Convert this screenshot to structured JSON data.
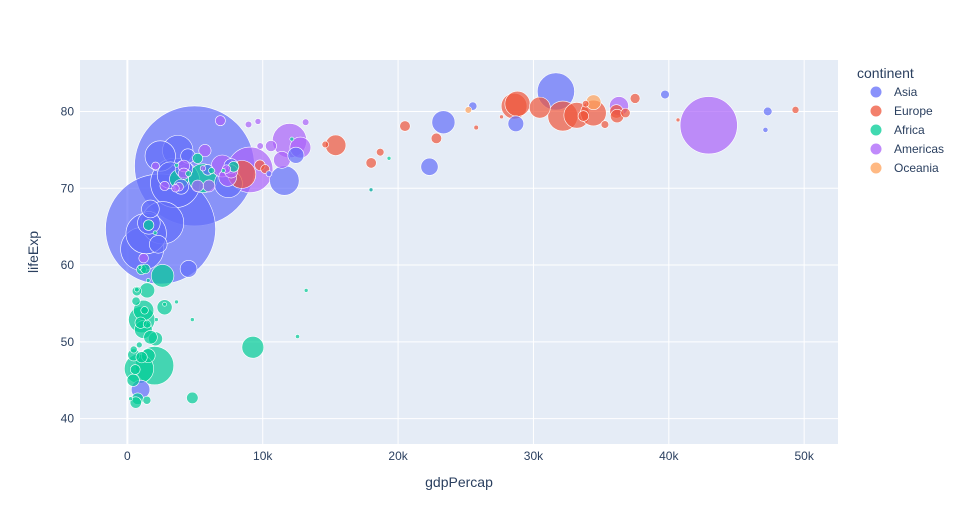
{
  "chart_data": {
    "type": "scatter",
    "xlabel": "gdpPercap",
    "ylabel": "lifeExp",
    "xlim": [
      -3500,
      52500
    ],
    "ylim": [
      36.7,
      86.7
    ],
    "x_ticks": [
      0,
      10000,
      20000,
      30000,
      40000,
      50000
    ],
    "x_tick_labels": [
      "0",
      "10k",
      "20k",
      "30k",
      "40k",
      "50k"
    ],
    "y_ticks": [
      40,
      50,
      60,
      70,
      80
    ],
    "y_tick_labels": [
      "40",
      "50",
      "60",
      "70",
      "80"
    ],
    "grid": true,
    "legend": {
      "title": "continent",
      "position": "top-right"
    },
    "series": [
      {
        "name": "Asia",
        "color": "#636efa",
        "points": [
          [
            4960,
            72.9,
            1319
          ],
          [
            2450,
            64.7,
            1110
          ],
          [
            3540,
            70.7,
            224
          ],
          [
            2600,
            65.5,
            165
          ],
          [
            31660,
            82.6,
            127
          ],
          [
            1390,
            64.1,
            150
          ],
          [
            1090,
            62.1,
            170
          ],
          [
            2430,
            74.2,
            85
          ],
          [
            3190,
            71.7,
            65
          ],
          [
            11600,
            71.0,
            80
          ],
          [
            7460,
            70.6,
            72
          ],
          [
            4470,
            74.2,
            19
          ],
          [
            22320,
            72.8,
            27.6
          ],
          [
            23350,
            78.6,
            49
          ],
          [
            28700,
            78.4,
            23
          ],
          [
            12450,
            74.3,
            24
          ],
          [
            1700,
            67.3,
            28.9
          ],
          [
            1590,
            65.5,
            47
          ],
          [
            4520,
            59.5,
            26
          ],
          [
            975,
            43.8,
            31.9
          ],
          [
            3970,
            70.2,
            20.4
          ],
          [
            2280,
            62.7,
            28.9
          ],
          [
            47310,
            80.0,
            6.9
          ],
          [
            39720,
            82.2,
            6.98
          ],
          [
            47140,
            77.6,
            2.5
          ],
          [
            25520,
            80.7,
            6.4
          ],
          [
            5940,
            72.4,
            10.7
          ],
          [
            10460,
            71.9,
            3.2
          ],
          [
            7670,
            72.9,
            19.3
          ],
          [
            4180,
            72.5,
            28.1
          ],
          [
            3720,
            74.9,
            85.3
          ]
        ]
      },
      {
        "name": "Europe",
        "color": "#ef553b",
        "points": [
          [
            32170,
            79.4,
            82.4
          ],
          [
            28570,
            80.7,
            61.1
          ],
          [
            33200,
            79.5,
            60.8
          ],
          [
            30470,
            80.5,
            40.4
          ],
          [
            28820,
            81.0,
            58.1
          ],
          [
            36800,
            79.8,
            8.2
          ],
          [
            33690,
            79.4,
            10.4
          ],
          [
            35280,
            78.3,
            5.5
          ],
          [
            36130,
            80.0,
            16.6
          ],
          [
            49360,
            80.2,
            4.6
          ],
          [
            37510,
            81.7,
            9.0
          ],
          [
            15390,
            75.6,
            38.5
          ],
          [
            8460,
            71.8,
            71.2
          ],
          [
            9790,
            73.0,
            10.2
          ],
          [
            10180,
            72.5,
            7.3
          ],
          [
            20510,
            78.1,
            10.2
          ],
          [
            22830,
            76.5,
            10.2
          ],
          [
            18010,
            73.3,
            10.0
          ],
          [
            18680,
            74.7,
            5.4
          ],
          [
            14620,
            75.7,
            4.1
          ],
          [
            40680,
            78.9,
            0.3
          ],
          [
            27640,
            79.3,
            0.4
          ],
          [
            33860,
            81.0,
            4.1
          ],
          [
            36180,
            79.4,
            16.5
          ],
          [
            25770,
            77.9,
            2.0
          ],
          [
            34430,
            79.8,
            60.8
          ]
        ]
      },
      {
        "name": "Africa",
        "color": "#00cc96",
        "points": [
          [
            2010,
            46.9,
            135
          ],
          [
            1060,
            52.9,
            64
          ],
          [
            860,
            46.5,
            79
          ],
          [
            5580,
            71.3,
            76.5
          ],
          [
            2600,
            58.6,
            47
          ],
          [
            9270,
            49.3,
            44
          ],
          [
            1200,
            54.1,
            38
          ],
          [
            1180,
            51.6,
            29
          ],
          [
            3820,
            71.2,
            33.3
          ],
          [
            7090,
            72.3,
            0.5
          ],
          [
            2750,
            54.5,
            21
          ],
          [
            1460,
            56.7,
            21
          ],
          [
            620,
            42.1,
            12
          ],
          [
            430,
            45.0,
            14
          ],
          [
            580,
            46.4,
            9
          ],
          [
            1540,
            48.2,
            17.7
          ],
          [
            2080,
            50.4,
            18
          ],
          [
            1710,
            50.6,
            17
          ],
          [
            1330,
            59.5,
            8.5
          ],
          [
            760,
            42.6,
            12.3
          ],
          [
            1050,
            48.0,
            11.7
          ],
          [
            980,
            52.5,
            11.7
          ],
          [
            1440,
            42.4,
            6.1
          ],
          [
            470,
            48.3,
            13.3
          ],
          [
            4800,
            42.7,
            12.3
          ],
          [
            12570,
            50.7,
            1.6
          ],
          [
            13210,
            56.7,
            1.4
          ],
          [
            4520,
            71.9,
            3.2
          ],
          [
            6220,
            72.3,
            3.4
          ],
          [
            12150,
            76.4,
            0.4
          ],
          [
            5190,
            73.9,
            9.6
          ],
          [
            3630,
            73.0,
            0.2
          ],
          [
            7850,
            72.8,
            10.2
          ],
          [
            1540,
            58.0,
            0.3
          ],
          [
            930,
            59.7,
            1.5
          ],
          [
            1270,
            54.1,
            5.2
          ],
          [
            2750,
            54.9,
            1.1
          ],
          [
            700,
            56.6,
            8.1
          ],
          [
            880,
            49.6,
            3.2
          ],
          [
            470,
            49.0,
            4.6
          ],
          [
            1570,
            65.2,
            10.2
          ],
          [
            2050,
            64.2,
            0.8
          ],
          [
            700,
            56.8,
            2.1
          ],
          [
            640,
            55.3,
            6.4
          ],
          [
            1040,
            59.4,
            9.1
          ],
          [
            1460,
            52.3,
            5.7
          ],
          [
            3630,
            55.2,
            1.5
          ],
          [
            4800,
            52.9,
            1.4
          ],
          [
            19330,
            73.9,
            0.2
          ],
          [
            240,
            42.6,
            0.6
          ],
          [
            2140,
            52.9,
            0.2
          ],
          [
            18000,
            69.8,
            0.3
          ]
        ]
      },
      {
        "name": "Americas",
        "color": "#ab63fa",
        "points": [
          [
            42950,
            78.2,
            301
          ],
          [
            9070,
            72.4,
            190
          ],
          [
            11980,
            76.2,
            108
          ],
          [
            36320,
            80.7,
            33.4
          ],
          [
            12780,
            75.3,
            40.3
          ],
          [
            7010,
            72.9,
            44.2
          ],
          [
            7410,
            71.4,
            28.7
          ],
          [
            11420,
            73.7,
            26.1
          ],
          [
            5730,
            74.9,
            13.8
          ],
          [
            8950,
            78.3,
            4.1
          ],
          [
            7670,
            72.2,
            16.3
          ],
          [
            6030,
            70.3,
            13.1
          ],
          [
            10610,
            75.5,
            11.4
          ],
          [
            13170,
            78.6,
            4.1
          ],
          [
            9650,
            78.7,
            3.4
          ],
          [
            4170,
            72.9,
            12.6
          ],
          [
            5190,
            70.3,
            12.6
          ],
          [
            2750,
            70.3,
            8.0
          ],
          [
            6870,
            78.8,
            9.3
          ],
          [
            3820,
            70.2,
            7.0
          ],
          [
            2080,
            72.9,
            5.7
          ],
          [
            7320,
            72.5,
            6.7
          ],
          [
            1200,
            60.9,
            8.5
          ],
          [
            3550,
            70.0,
            5.4
          ],
          [
            5580,
            72.6,
            2.8
          ],
          [
            9810,
            75.5,
            3.9
          ],
          [
            4170,
            71.9,
            11.7
          ],
          [
            18010,
            69.8,
            1.1
          ]
        ]
      },
      {
        "name": "Oceania",
        "color": "#ffa15a",
        "points": [
          [
            34440,
            81.2,
            20.4
          ],
          [
            25190,
            80.2,
            4.1
          ]
        ]
      }
    ]
  }
}
